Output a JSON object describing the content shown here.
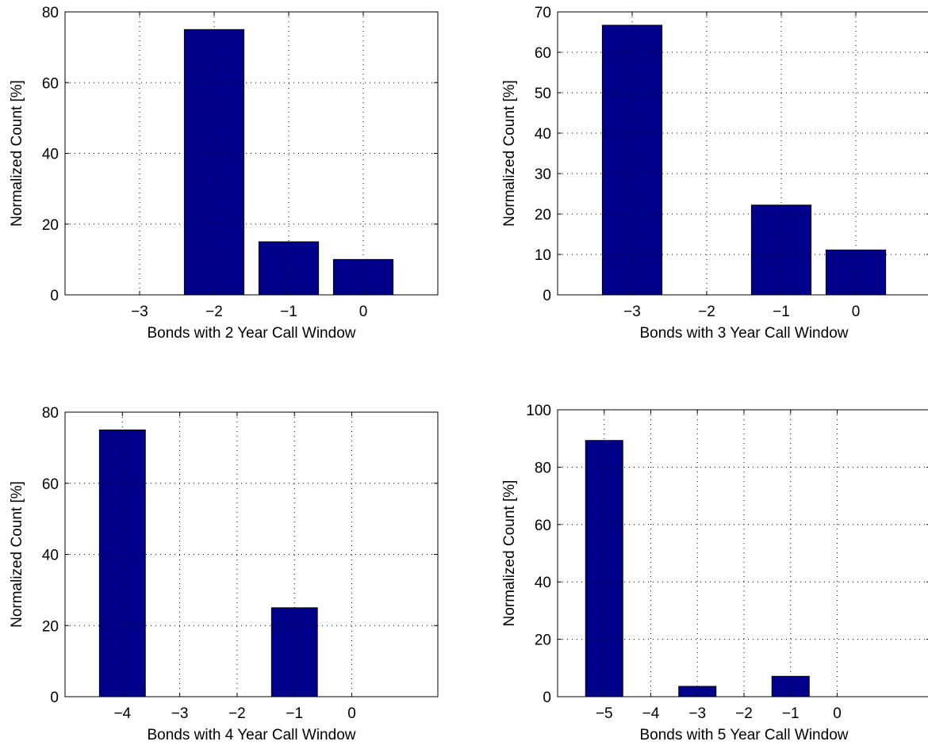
{
  "colors": {
    "bar_fill": "#00008b",
    "bar_stroke": "#000000",
    "axes": "#000000",
    "grid": "#000000",
    "background": "#ffffff"
  },
  "chart_data": [
    {
      "type": "bar",
      "title": "",
      "xlabel": "Bonds with 2 Year Call Window",
      "ylabel": "Normalized Count [%]",
      "categories": [
        "−3",
        "−2",
        "−1",
        "0"
      ],
      "x": [
        -3,
        -2,
        -1,
        0
      ],
      "values": [
        0,
        75,
        15,
        10
      ],
      "xlim": [
        -4,
        1
      ],
      "ylim": [
        0,
        80
      ],
      "yticks": [
        0,
        20,
        40,
        60,
        80
      ],
      "grid": true
    },
    {
      "type": "bar",
      "title": "",
      "xlabel": "Bonds with 3 Year Call Window",
      "ylabel": "Normalized Count [%]",
      "categories": [
        "−3",
        "−2",
        "−1",
        "0"
      ],
      "x": [
        -3,
        -2,
        -1,
        0
      ],
      "values": [
        66.7,
        0,
        22.2,
        11.1
      ],
      "xlim": [
        -4,
        1
      ],
      "ylim": [
        0,
        70
      ],
      "yticks": [
        0,
        10,
        20,
        30,
        40,
        50,
        60,
        70
      ],
      "grid": true
    },
    {
      "type": "bar",
      "title": "",
      "xlabel": "Bonds with 4 Year Call Window",
      "ylabel": "Normalized Count [%]",
      "categories": [
        "−4",
        "−3",
        "−2",
        "−1",
        "0"
      ],
      "x": [
        -4,
        -3,
        -2,
        -1,
        0
      ],
      "values": [
        75,
        0,
        0,
        25,
        0
      ],
      "xlim": [
        -5,
        1.5
      ],
      "ylim": [
        0,
        80
      ],
      "yticks": [
        0,
        20,
        40,
        60,
        80
      ],
      "grid": true
    },
    {
      "type": "bar",
      "title": "",
      "xlabel": "Bonds with 5 Year Call Window",
      "ylabel": "Normalized Count [%]",
      "categories": [
        "−5",
        "−4",
        "−3",
        "−2",
        "−1",
        "0"
      ],
      "x": [
        -5,
        -4,
        -3,
        -2,
        -1,
        0
      ],
      "values": [
        89.3,
        0,
        3.6,
        0,
        7.1,
        0
      ],
      "xlim": [
        -6,
        2
      ],
      "ylim": [
        0,
        100
      ],
      "yticks": [
        0,
        20,
        40,
        60,
        80,
        100
      ],
      "grid": true
    }
  ]
}
